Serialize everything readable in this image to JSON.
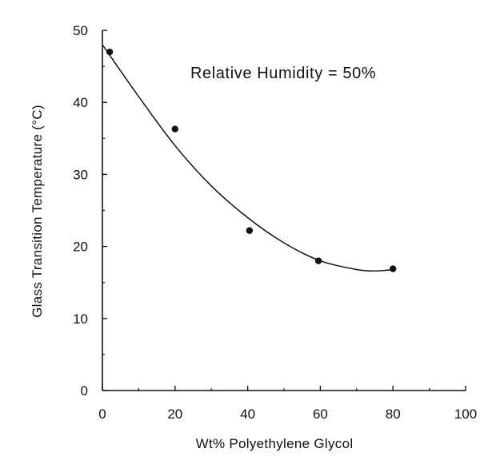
{
  "chart_data": {
    "type": "scatter",
    "title": "",
    "xlabel": "Wt% Polyethylene Glycol",
    "ylabel": "Glass Transition Temperature (°C)",
    "annotation": "Relative Humidity = 50%",
    "xlim": [
      0,
      100
    ],
    "ylim": [
      0,
      50
    ],
    "x_ticks": [
      0,
      20,
      40,
      60,
      80,
      100
    ],
    "y_ticks": [
      0,
      10,
      20,
      30,
      40,
      50
    ],
    "x_tick_labels": [
      "0",
      "20",
      "40",
      "60",
      "80",
      "100"
    ],
    "y_tick_labels": [
      "0",
      "10",
      "20",
      "30",
      "40",
      "50"
    ],
    "grid": false,
    "series": [
      {
        "x": [
          2,
          20,
          40.5,
          59.5,
          80
        ],
        "y": [
          47,
          36.3,
          22.2,
          18,
          16.9
        ]
      }
    ],
    "fit_curve": {
      "x": [
        0,
        10,
        20,
        30,
        40,
        50,
        60,
        70,
        75,
        80
      ],
      "y": [
        48,
        40.8,
        34,
        28.4,
        24,
        20.5,
        18,
        16.8,
        16.6,
        16.8
      ]
    },
    "colors": {
      "ink": "#111111",
      "background": "#ffffff"
    }
  }
}
